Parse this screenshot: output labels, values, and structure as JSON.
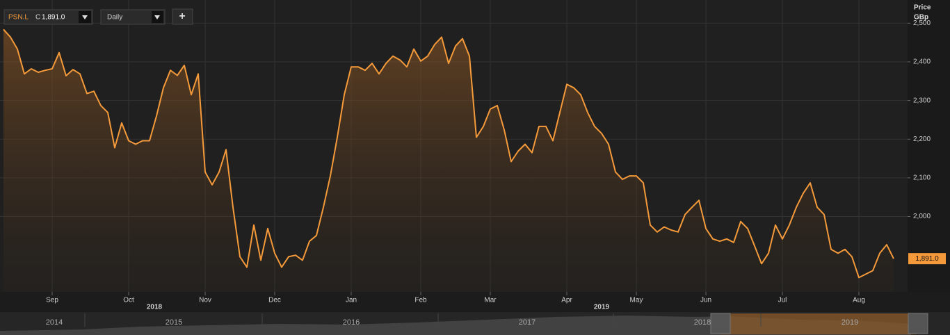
{
  "toolbar": {
    "symbol": "PSN.L",
    "close_prefix": "C",
    "close_value": "1,891.0",
    "interval": "Daily",
    "add_button": "+"
  },
  "chart_data": {
    "type": "line",
    "area": true,
    "color": "#f59a3a",
    "y_axis_title": "Price",
    "y_axis_unit": "GBp",
    "categories": [
      null,
      null,
      null,
      null,
      null,
      null,
      null,
      "Sep",
      null,
      null,
      null,
      null,
      null,
      null,
      null,
      null,
      null,
      null,
      "Oct",
      null,
      null,
      null,
      null,
      null,
      null,
      null,
      null,
      null,
      null,
      "Nov",
      null,
      null,
      null,
      null,
      null,
      null,
      null,
      null,
      null,
      "Dec",
      null,
      null,
      null,
      null,
      null,
      null,
      null,
      null,
      null,
      null,
      "Jan",
      null,
      null,
      null,
      null,
      null,
      null,
      null,
      null,
      null,
      "Feb",
      null,
      null,
      null,
      null,
      null,
      null,
      null,
      null,
      null,
      "Mar",
      null,
      null,
      null,
      null,
      null,
      null,
      null,
      null,
      null,
      null,
      "Apr",
      null,
      null,
      null,
      null,
      null,
      null,
      null,
      null,
      null,
      "May",
      null,
      null,
      null,
      null,
      null,
      null,
      null,
      null,
      null,
      "Jun",
      null,
      null,
      null,
      null,
      null,
      null,
      null,
      null,
      null,
      null,
      "Jul",
      null,
      null,
      null,
      null,
      null,
      null,
      null,
      null,
      null,
      null,
      "Aug",
      null,
      null,
      null,
      null,
      null
    ],
    "values": [
      2484,
      2464,
      2433,
      2369,
      2382,
      2373,
      2378,
      2382,
      2424,
      2364,
      2380,
      2369,
      2318,
      2324,
      2287,
      2269,
      2178,
      2242,
      2196,
      2187,
      2196,
      2196,
      2260,
      2333,
      2378,
      2365,
      2391,
      2315,
      2369,
      2115,
      2082,
      2115,
      2173,
      2024,
      1896,
      1869,
      1978,
      1887,
      1969,
      1905,
      1869,
      1896,
      1900,
      1887,
      1936,
      1951,
      2024,
      2105,
      2205,
      2315,
      2387,
      2387,
      2378,
      2396,
      2369,
      2396,
      2415,
      2405,
      2387,
      2433,
      2402,
      2415,
      2445,
      2464,
      2396,
      2441,
      2460,
      2415,
      2205,
      2233,
      2278,
      2287,
      2224,
      2142,
      2169,
      2187,
      2165,
      2233,
      2233,
      2196,
      2269,
      2342,
      2333,
      2315,
      2269,
      2233,
      2215,
      2187,
      2115,
      2096,
      2105,
      2105,
      2087,
      1978,
      1960,
      1973,
      1965,
      1960,
      2005,
      2024,
      2042,
      1969,
      1942,
      1936,
      1942,
      1933,
      1987,
      1969,
      1924,
      1878,
      1905,
      1978,
      1942,
      1978,
      2024,
      2060,
      2087,
      2024,
      2005,
      1915,
      1905,
      1915,
      1896,
      1842,
      1851,
      1860,
      1905,
      1927,
      1891
    ],
    "year_labels": [
      "2018",
      "2019"
    ],
    "last_label": "1,891.0",
    "ylim": [
      1805,
      2560
    ],
    "yticks": [
      {
        "value": 2000,
        "label": "2,000"
      },
      {
        "value": 2100,
        "label": "2,100"
      },
      {
        "value": 2200,
        "label": "2,200"
      },
      {
        "value": 2300,
        "label": "2,300"
      },
      {
        "value": 2400,
        "label": "2,400"
      },
      {
        "value": 2500,
        "label": "2,500"
      }
    ],
    "grid": true
  },
  "navigator": {
    "years": [
      "2014",
      "2015",
      "2016",
      "2017",
      "2018",
      "2019"
    ]
  }
}
